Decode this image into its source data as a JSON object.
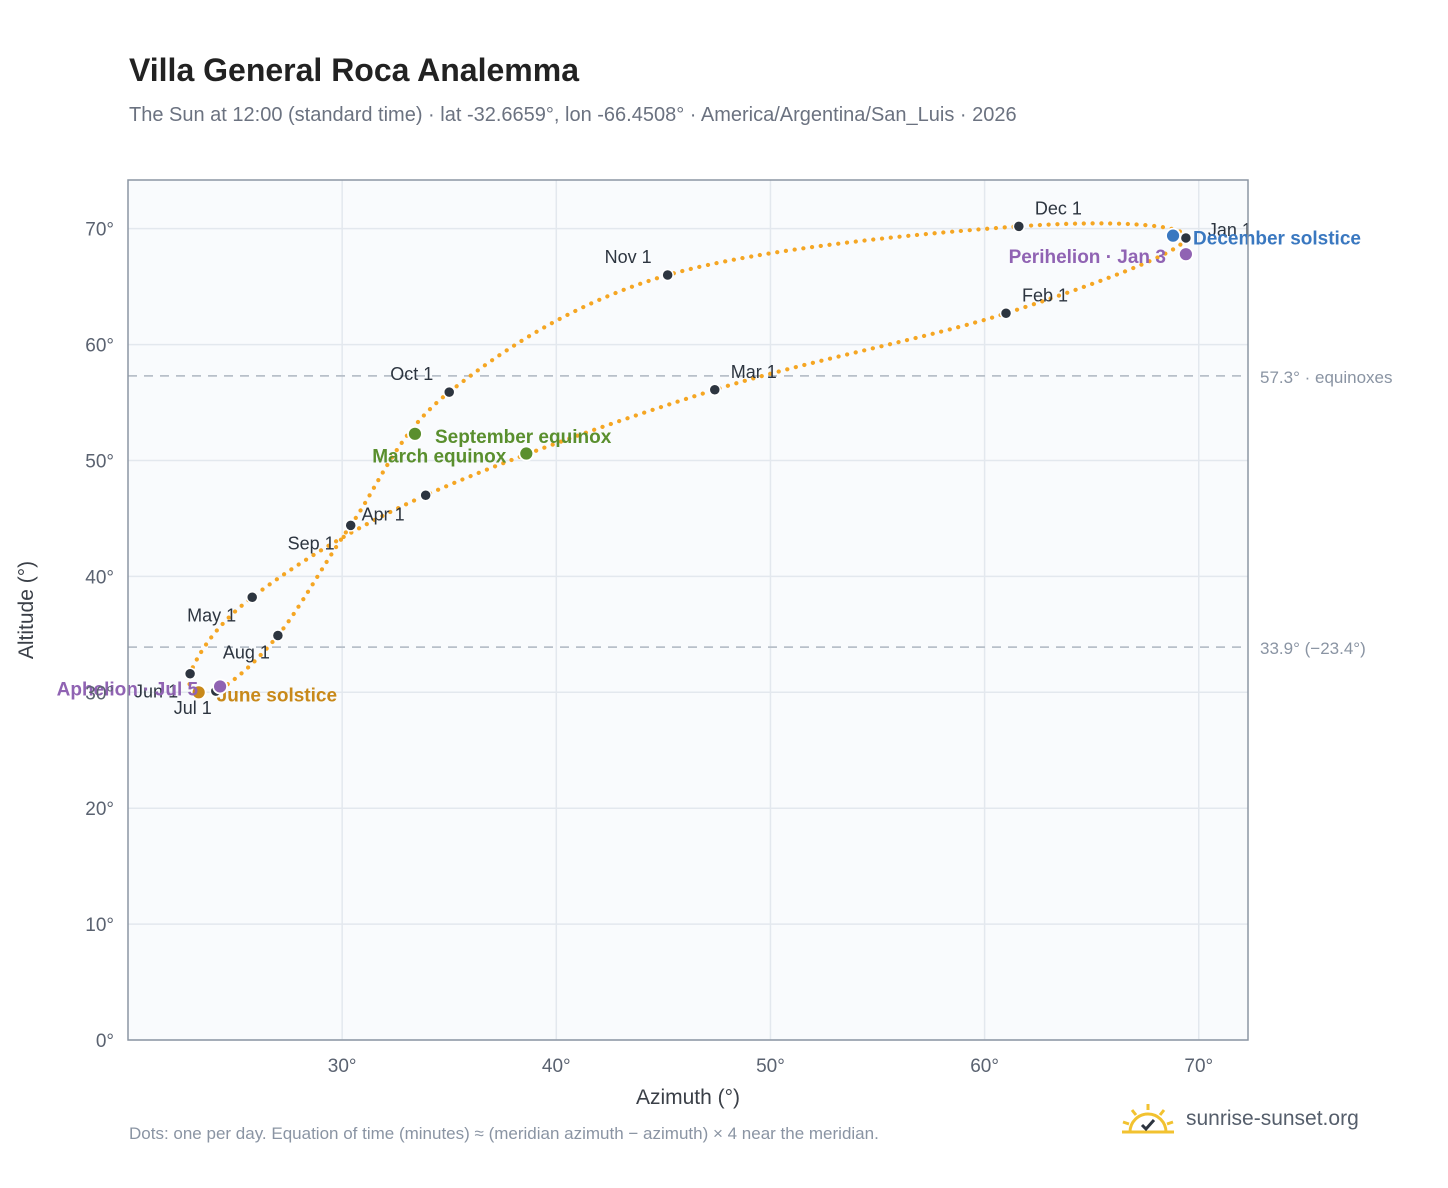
{
  "header": {
    "title": "Villa General Roca Analemma",
    "subtitle": "The Sun at 12:00 (standard time) · lat -32.6659°, lon -66.4508° · America/Argentina/San_Luis · 2026"
  },
  "footer": {
    "note": "Dots: one per day. Equation of time (minutes) ≈ (meridian azimuth − azimuth) × 4 near the meridian.",
    "brand": "sunrise-sunset.org",
    "brand_icon": "sun-check-icon"
  },
  "colors": {
    "curve": "#f5a623",
    "month_marker": "#2d3540",
    "equinox": "#5a8f2e",
    "june_solstice": "#c8891a",
    "december_solstice": "#3a78c0",
    "apsis": "#9063b3",
    "reference_line": "#b8c0c9",
    "plot_bg": "#f9fbfd",
    "grid": "#e3e8ee"
  },
  "chart_data": {
    "type": "scatter",
    "xlabel": "Azimuth (°)",
    "ylabel": "Altitude (°)",
    "xlim": [
      20,
      72.3
    ],
    "ylim": [
      0,
      74.2
    ],
    "x_ticks": [
      30,
      40,
      50,
      60,
      70
    ],
    "y_ticks": [
      0,
      10,
      20,
      30,
      40,
      50,
      60,
      70
    ],
    "x_tick_labels": [
      "30°",
      "40°",
      "50°",
      "60°",
      "70°"
    ],
    "y_tick_labels": [
      "0°",
      "10°",
      "20°",
      "30°",
      "40°",
      "50°",
      "60°",
      "70°"
    ],
    "grid": true,
    "reference_lines": [
      {
        "y": 57.3,
        "label": "57.3° · equinoxes"
      },
      {
        "y": 33.9,
        "label": "33.9° (−23.4°)"
      }
    ],
    "month_markers": [
      {
        "label": "Jan 1",
        "x": 69.4,
        "y": 69.2
      },
      {
        "label": "Feb 1",
        "x": 61.0,
        "y": 62.7
      },
      {
        "label": "Mar 1",
        "x": 47.4,
        "y": 56.1
      },
      {
        "label": "Apr 1",
        "x": 33.9,
        "y": 47.0
      },
      {
        "label": "May 1",
        "x": 25.8,
        "y": 38.2
      },
      {
        "label": "Jun 1",
        "x": 22.9,
        "y": 31.6
      },
      {
        "label": "Jul 1",
        "x": 24.1,
        "y": 30.1
      },
      {
        "label": "Aug 1",
        "x": 27.0,
        "y": 34.9
      },
      {
        "label": "Sep 1",
        "x": 30.4,
        "y": 44.4
      },
      {
        "label": "Oct 1",
        "x": 35.0,
        "y": 55.9
      },
      {
        "label": "Nov 1",
        "x": 45.2,
        "y": 66.0
      },
      {
        "label": "Dec 1",
        "x": 61.6,
        "y": 70.2
      }
    ],
    "events": [
      {
        "label": "March equinox",
        "x": 38.6,
        "y": 50.6,
        "kind": "equinox"
      },
      {
        "label": "June solstice",
        "x": 23.3,
        "y": 30.0,
        "kind": "june_solstice"
      },
      {
        "label": "September equinox",
        "x": 33.4,
        "y": 52.3,
        "kind": "equinox"
      },
      {
        "label": "December solstice",
        "x": 68.8,
        "y": 69.4,
        "kind": "december_solstice"
      },
      {
        "label": "Perihelion · Jan 3",
        "x": 69.4,
        "y": 67.8,
        "kind": "apsis"
      },
      {
        "label": "Aphelion · Jul 5",
        "x": 24.3,
        "y": 30.5,
        "kind": "apsis"
      }
    ]
  }
}
